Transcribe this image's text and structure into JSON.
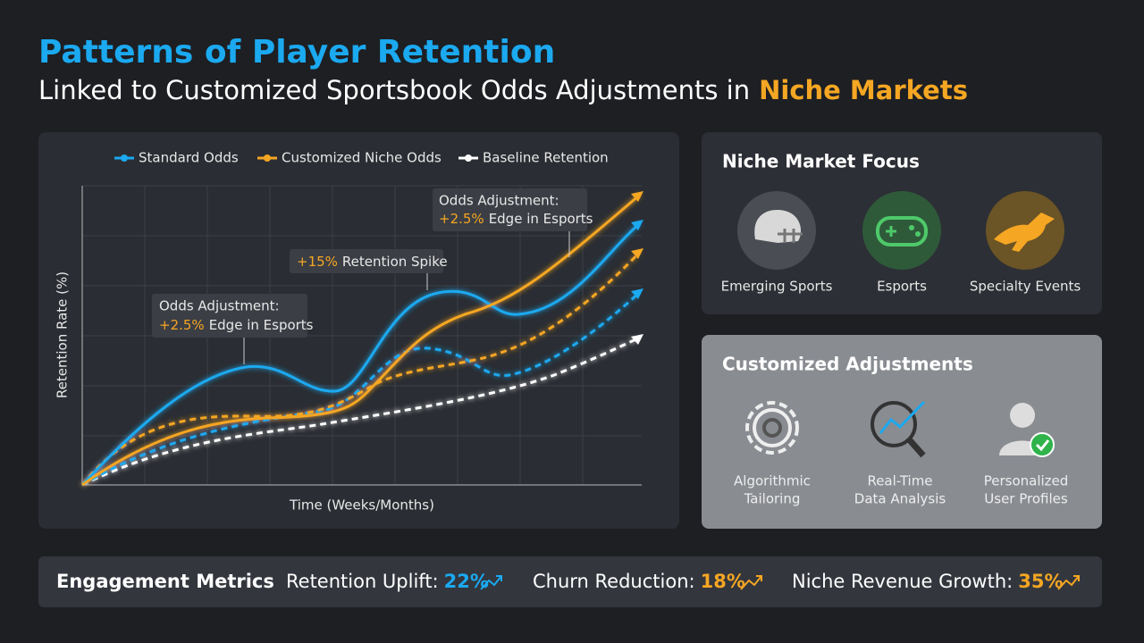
{
  "header": {
    "title": "Patterns of Player Retention",
    "subtitle": "Linked to Customized Sportsbook Odds Adjustments in",
    "subtitle_highlight": "Niche Markets"
  },
  "chart": {
    "legend": [
      "Standard Odds",
      "Customized Niche Odds",
      "Baseline Retention"
    ],
    "y_label": "Retention Rate (%)",
    "x_label": "Time (Weeks/Months)",
    "annotations": [
      {
        "line1": "Odds Adjustment:",
        "highlight": "+2.5%",
        "rest": "Edge in Esports"
      },
      {
        "highlight": "+15%",
        "rest": "Retention Spike"
      },
      {
        "line1": "Odds Adjustment:",
        "highlight": "+2.5%",
        "rest": "Edge in Esports"
      }
    ]
  },
  "focus": {
    "title": "Niche Market Focus",
    "items": [
      "Emerging Sports",
      "Esports",
      "Specialty Events"
    ]
  },
  "adjustments": {
    "title": "Customized Adjustments",
    "items": [
      [
        "Algorithmic",
        "Tailoring"
      ],
      [
        "Real-Time",
        "Data Analysis"
      ],
      [
        "Personalized",
        "User Profiles"
      ]
    ]
  },
  "metrics": {
    "title": "Engagement Metrics",
    "items": [
      {
        "label": "Retention Uplift:",
        "value": "22%"
      },
      {
        "label": "Churn Reduction:",
        "value": "18%"
      },
      {
        "label": "Niche Revenue Growth:",
        "value": "35%"
      }
    ]
  }
}
